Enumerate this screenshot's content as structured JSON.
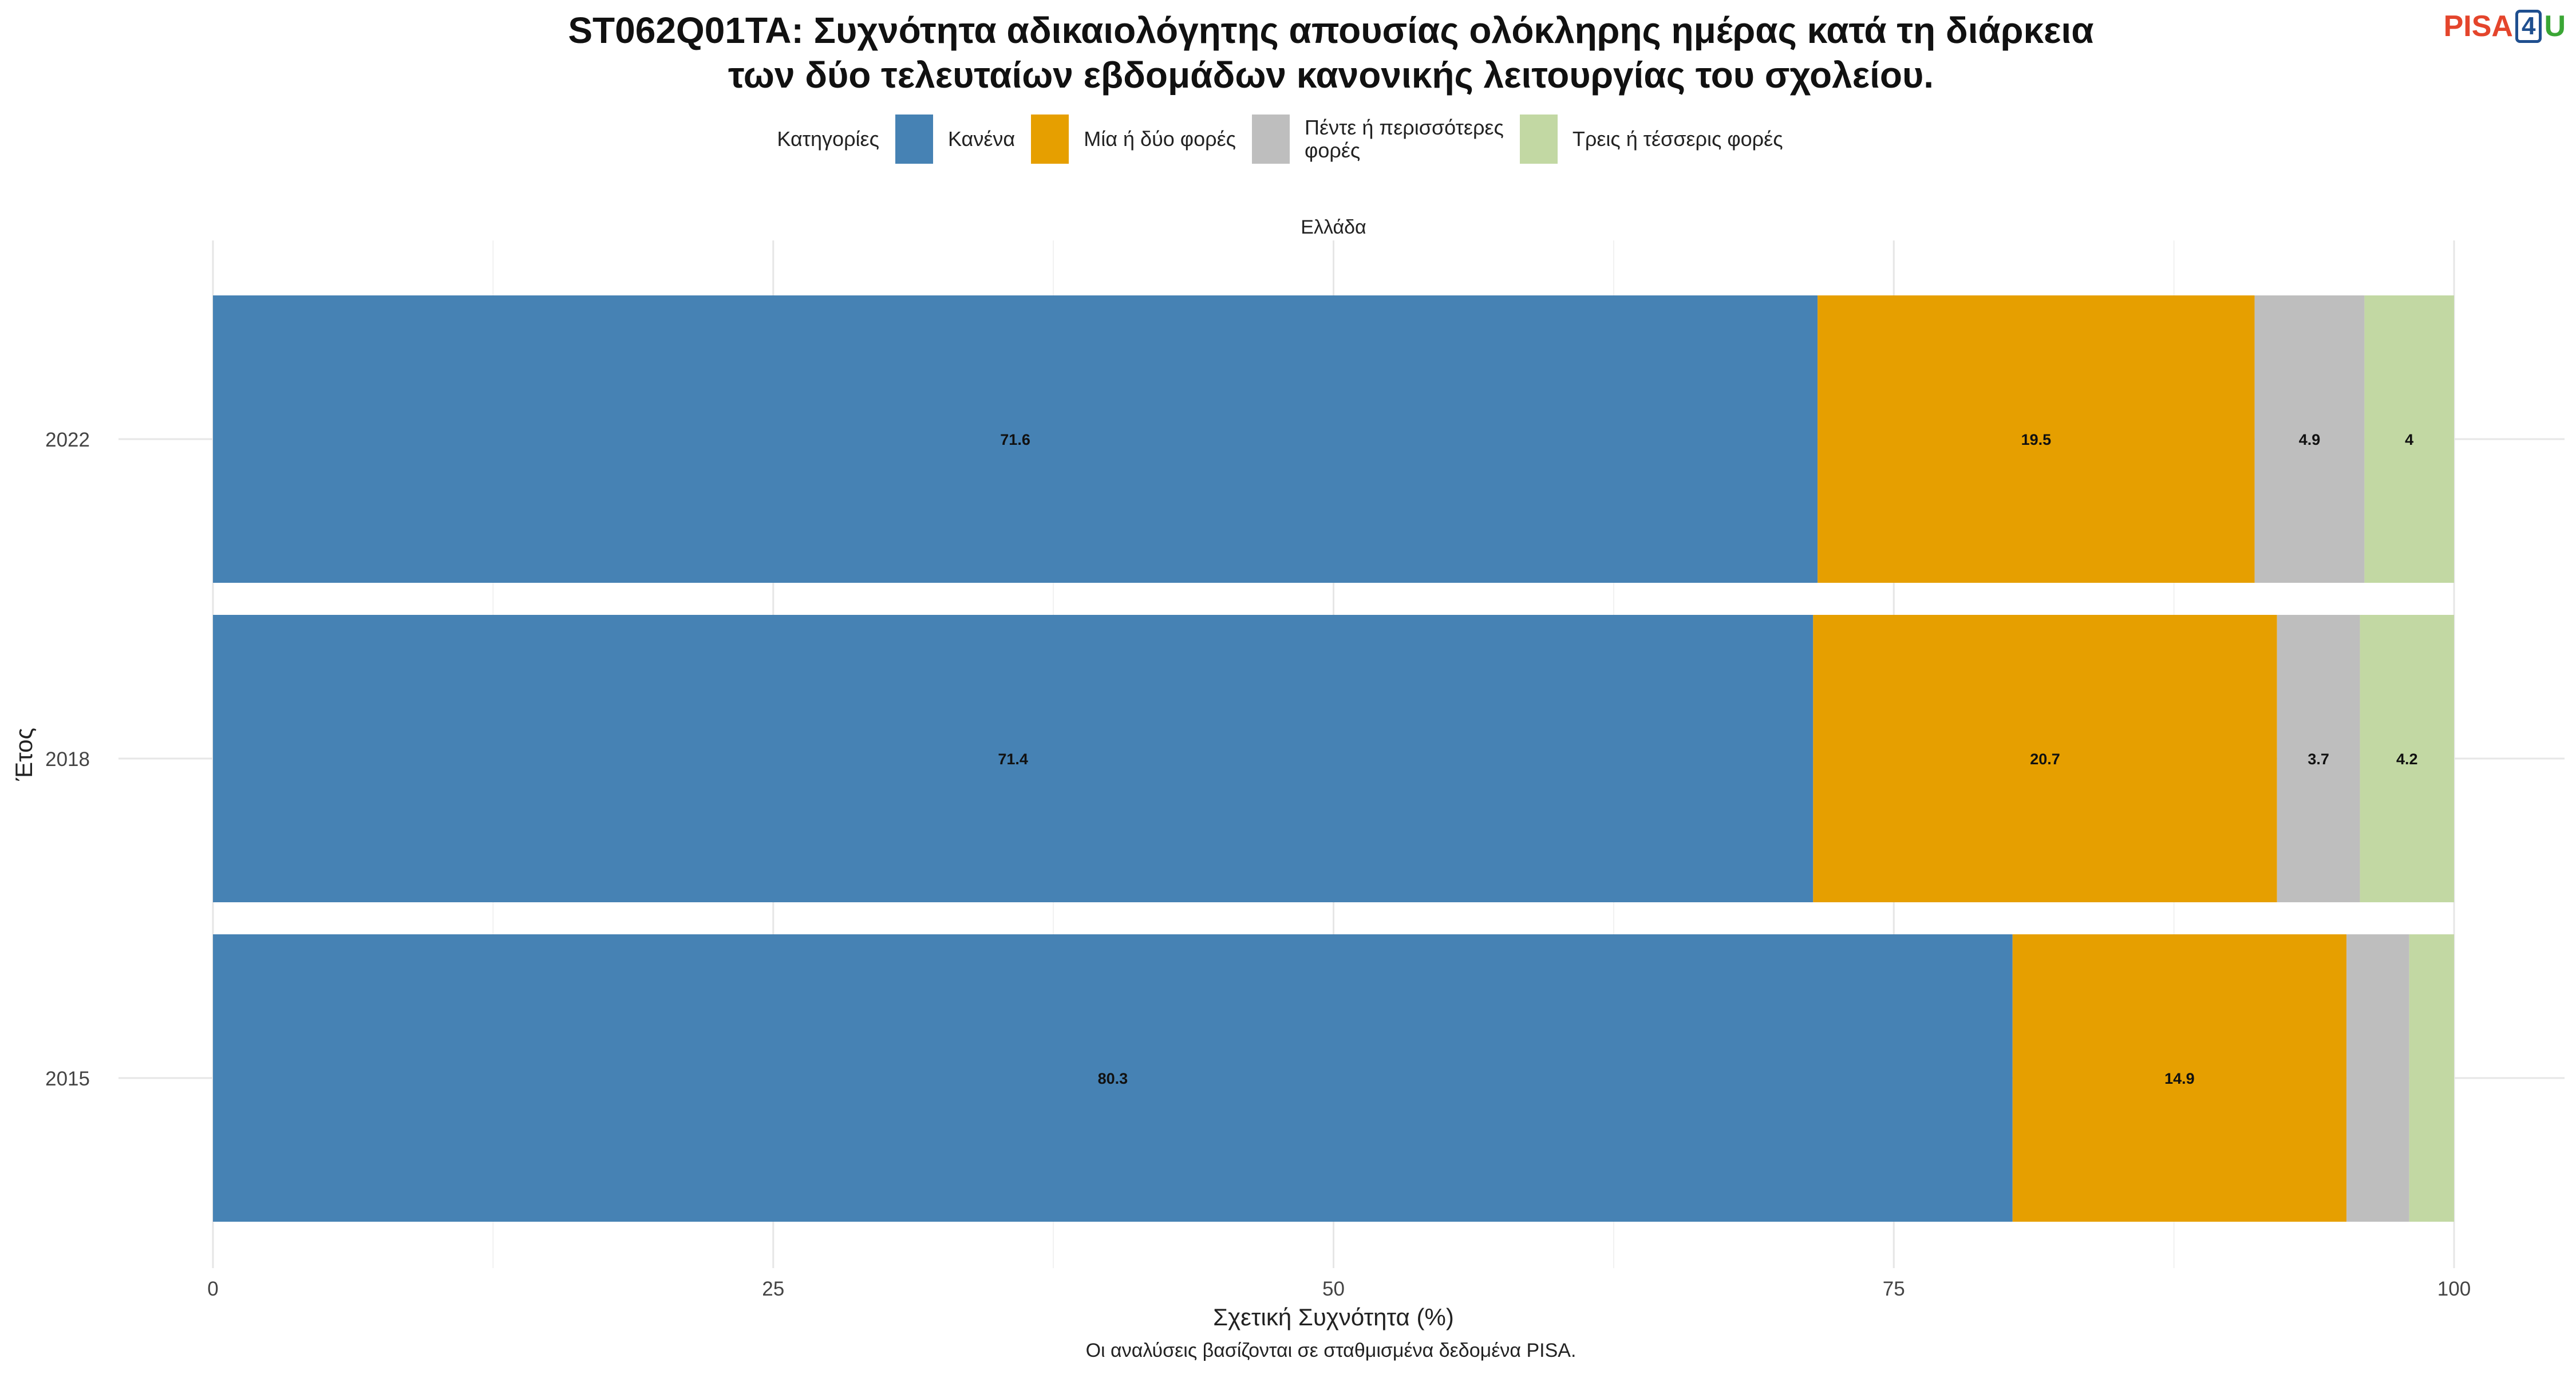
{
  "header": {
    "title_line1": "ST062Q01TA: Συχνότητα αδικαιολόγητης απουσίας ολόκληρης ημέρας κατά τη διάρκεια",
    "title_line2": "των δύο τελευταίων εβδομάδων κανονικής λειτουργίας του σχολείου.",
    "logo_pisa": "PISA",
    "logo_four": "4",
    "logo_u": "U"
  },
  "legend": {
    "title": "Κατηγορίες",
    "items": [
      {
        "label": "Κανένα",
        "color": "#4682b4"
      },
      {
        "label": "Μία ή δύο φορές",
        "color": "#e69f00"
      },
      {
        "label_line1": "Πέντε ή περισσότερες",
        "label_line2": "φορές",
        "color": "#bebebe"
      },
      {
        "label": "Τρεις ή τέσσερις φορές",
        "color": "#c2d8a3"
      }
    ]
  },
  "footer": {
    "note": "Οι αναλύσεις βασίζονται σε σταθμισμένα δεδομένα PISA."
  },
  "chart_data": {
    "type": "bar",
    "orientation": "horizontal",
    "stacked": true,
    "panel_label": "Ελλάδα",
    "xlabel": "Σχετική Συχνότητα (%)",
    "ylabel": "Έτος",
    "xlim": [
      0,
      100
    ],
    "xticks": [
      0,
      25,
      50,
      75,
      100
    ],
    "categories": [
      "2022",
      "2018",
      "2015"
    ],
    "series": [
      {
        "name": "Κανένα",
        "color": "#4682b4",
        "values": [
          71.6,
          71.4,
          80.3
        ],
        "labels": [
          "71.6",
          "71.4",
          "80.3"
        ]
      },
      {
        "name": "Μία ή δύο φορές",
        "color": "#e69f00",
        "values": [
          19.5,
          20.7,
          14.9
        ],
        "labels": [
          "19.5",
          "20.7",
          "14.9"
        ]
      },
      {
        "name": "Πέντε ή περισσότερες φορές",
        "color": "#bebebe",
        "values": [
          4.9,
          3.7,
          2.8
        ],
        "labels": [
          "4.9",
          "3.7",
          ""
        ]
      },
      {
        "name": "Τρεις ή τέσσερις φορές",
        "color": "#c2d8a3",
        "values": [
          4.0,
          4.2,
          2.0
        ],
        "labels": [
          "4",
          "4.2",
          ""
        ]
      }
    ],
    "grid": true,
    "legend_position": "top"
  }
}
